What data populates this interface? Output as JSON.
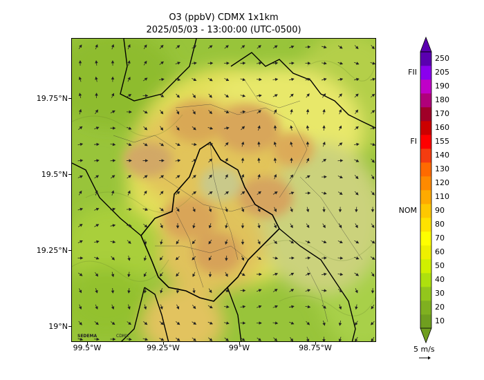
{
  "header": {
    "title": "O3 (ppbV) CDMX 1x1km",
    "subtitle": "2025/05/03 - 13:00:00 (UTC-0500)"
  },
  "map": {
    "y_ticks": [
      "19.75°N",
      "19.5°N",
      "19.25°N",
      "19°N"
    ],
    "x_ticks": [
      "99.5°W",
      "99.25°W",
      "99°W",
      "98.75°W"
    ],
    "lat_range": [
      18.95,
      19.95
    ],
    "lon_range": [
      -99.53,
      -98.53
    ],
    "logos": [
      "SEDEMA",
      "CDMX"
    ]
  },
  "colorbar": {
    "labels": [
      "10",
      "20",
      "30",
      "40",
      "50",
      "60",
      "70",
      "80",
      "90",
      "110",
      "120",
      "130",
      "140",
      "155",
      "160",
      "170",
      "180",
      "190",
      "205",
      "250"
    ],
    "colors": [
      "#6f9e1f",
      "#7fb020",
      "#93c61c",
      "#aee00e",
      "#d0f000",
      "#eef000",
      "#ffff00",
      "#ffe200",
      "#ffc800",
      "#ffaa00",
      "#ff8a00",
      "#ff6a00",
      "#f43c10",
      "#ff0000",
      "#cc0000",
      "#a00028",
      "#b0007a",
      "#c000c8",
      "#8a00ee",
      "#5a00b0"
    ],
    "side_labels": [
      {
        "text": "FII",
        "index": 18
      },
      {
        "text": "FI",
        "index": 13
      },
      {
        "text": "NOM",
        "index": 8
      }
    ]
  },
  "wind": {
    "label": "5 m/s"
  }
}
